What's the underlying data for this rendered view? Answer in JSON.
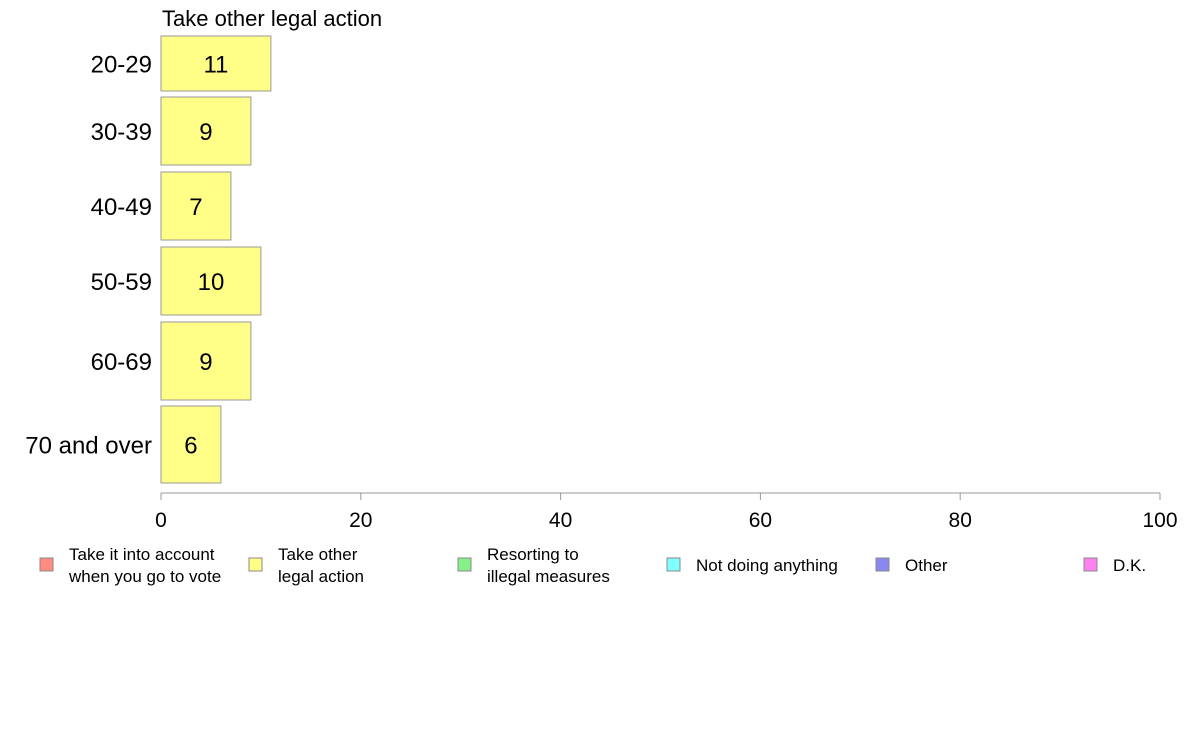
{
  "chart_data": {
    "type": "bar",
    "orientation": "horizontal",
    "title": "Take other legal action",
    "categories": [
      "20-29",
      "30-39",
      "40-49",
      "50-59",
      "60-69",
      "70 and over"
    ],
    "series": [
      {
        "name": "Take other legal action",
        "values": [
          11,
          9,
          7,
          10,
          9,
          6
        ],
        "value_labels": [
          "11",
          "9",
          "7",
          "10",
          "9",
          "6"
        ],
        "color": "#ffff88"
      }
    ],
    "xlim": [
      0,
      100
    ],
    "x_ticks": [
      0,
      20,
      40,
      60,
      80,
      100
    ],
    "x_tick_labels": [
      "0",
      "20",
      "40",
      "60",
      "80",
      "100"
    ],
    "grid": false,
    "legend_position": "bottom",
    "legend": [
      {
        "lines": [
          "Take it into account",
          "when you go to vote"
        ],
        "color": "#ff8c80"
      },
      {
        "lines": [
          "Take other",
          "legal action"
        ],
        "color": "#ffff88"
      },
      {
        "lines": [
          "Resorting to",
          "illegal measures"
        ],
        "color": "#88f088"
      },
      {
        "lines": [
          "Not doing anything"
        ],
        "color": "#80ffff"
      },
      {
        "lines": [
          "Other"
        ],
        "color": "#8888f0"
      },
      {
        "lines": [
          "D.K."
        ],
        "color": "#ff80f0"
      }
    ],
    "colors": {
      "bar_border": "#999999",
      "axis": "#999999"
    }
  }
}
